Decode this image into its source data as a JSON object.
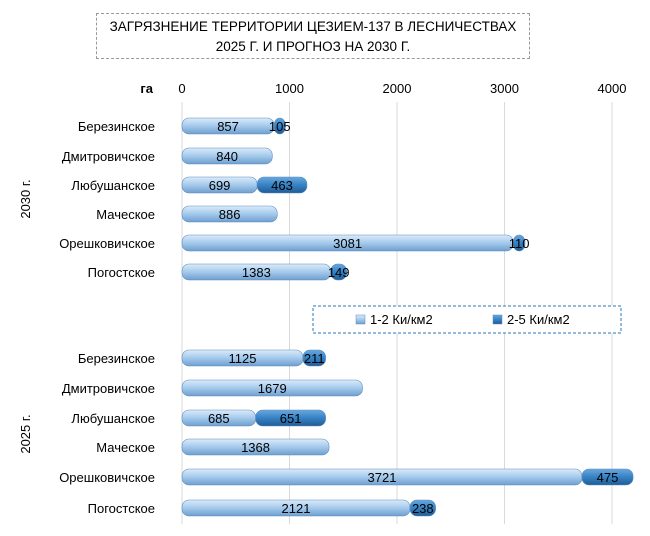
{
  "title": {
    "line1": "ЗАГРЯЗНЕНИЕ ТЕРРИТОРИИ ЦЕЗИЕМ-137 В ЛЕСНИЧЕСТВАХ",
    "line2": "2025 Г. И ПРОГНОЗ НА 2030 Г."
  },
  "chart_data": {
    "type": "bar",
    "orientation": "horizontal",
    "stacked": true,
    "axis_unit_label": "га",
    "xlim": [
      0,
      4000
    ],
    "ticks": [
      0,
      1000,
      2000,
      3000,
      4000
    ],
    "grid": true,
    "legend": "middle-right",
    "series": [
      {
        "name": "1-2 Ки/км2",
        "color": "#9dc3e6"
      },
      {
        "name": "2-5 Ки/км2",
        "color": "#2e75b6"
      }
    ],
    "groups": [
      {
        "label": "2030 г.",
        "rows": [
          {
            "category": "Березинское",
            "values": [
              857,
              105
            ]
          },
          {
            "category": "Дмитровичское",
            "values": [
              840,
              null
            ]
          },
          {
            "category": "Любушанское",
            "values": [
              699,
              463
            ]
          },
          {
            "category": "Маческое",
            "values": [
              886,
              null
            ]
          },
          {
            "category": "Орешковичское",
            "values": [
              3081,
              110
            ]
          },
          {
            "category": "Погостское",
            "values": [
              1383,
              149
            ]
          }
        ]
      },
      {
        "label": "2025 г.",
        "rows": [
          {
            "category": "Березинское",
            "values": [
              1125,
              211
            ]
          },
          {
            "category": "Дмитровичское",
            "values": [
              1679,
              null
            ]
          },
          {
            "category": "Любушанское",
            "values": [
              685,
              651
            ]
          },
          {
            "category": "Маческое",
            "values": [
              1368,
              null
            ]
          },
          {
            "category": "Орешковичское",
            "values": [
              3721,
              475
            ]
          },
          {
            "category": "Погостское",
            "values": [
              2121,
              238
            ]
          }
        ]
      }
    ]
  }
}
